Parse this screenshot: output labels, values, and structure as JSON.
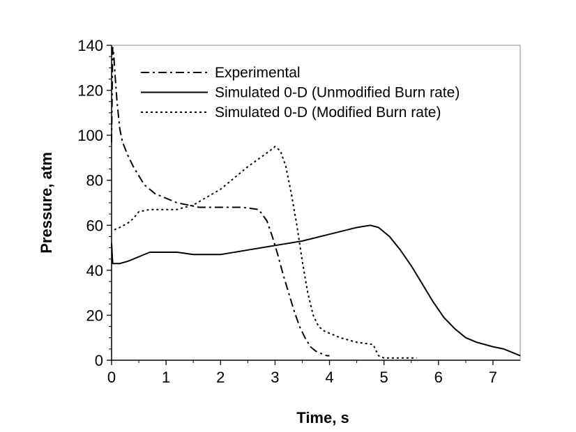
{
  "chart_data": {
    "type": "line",
    "title": "",
    "xlabel": "Time, s",
    "ylabel": "Pressure, atm",
    "xlim": [
      0,
      7.5
    ],
    "ylim": [
      0,
      140
    ],
    "xticks": [
      0,
      1,
      2,
      3,
      4,
      5,
      6,
      7
    ],
    "yticks": [
      0,
      20,
      40,
      60,
      80,
      100,
      120,
      140
    ],
    "grid": false,
    "legend_position": "top",
    "series": [
      {
        "name": "Experimental",
        "style": "dash-dot",
        "color": "#000000",
        "x": [
          0,
          0.02,
          0.04,
          0.06,
          0.1,
          0.15,
          0.2,
          0.3,
          0.4,
          0.5,
          0.6,
          0.8,
          1.0,
          1.2,
          1.4,
          1.6,
          2.0,
          2.4,
          2.7,
          2.85,
          2.95,
          3.05,
          3.15,
          3.25,
          3.35,
          3.45,
          3.55,
          3.65,
          3.75,
          3.85,
          3.95,
          4.0
        ],
        "y": [
          97,
          139,
          136,
          128,
          115,
          103,
          97,
          91,
          86,
          82,
          78,
          74,
          72,
          70,
          69,
          68,
          68,
          68,
          67,
          62,
          55,
          47,
          38,
          30,
          22,
          15,
          10,
          6,
          4,
          3,
          2,
          2
        ]
      },
      {
        "name": "Simulated 0-D (Unmodified Burn rate)",
        "style": "solid",
        "color": "#000000",
        "x": [
          0,
          0.02,
          0.05,
          0.15,
          0.3,
          0.5,
          0.7,
          1.0,
          1.2,
          1.5,
          2.0,
          2.5,
          3.0,
          3.5,
          4.0,
          4.5,
          4.75,
          4.9,
          5.1,
          5.3,
          5.5,
          5.7,
          5.9,
          6.1,
          6.3,
          6.5,
          6.7,
          7.0,
          7.2,
          7.4,
          7.5
        ],
        "y": [
          52,
          43,
          43,
          43,
          44,
          46,
          48,
          48,
          48,
          47,
          47,
          49,
          51,
          53,
          56,
          59,
          60,
          59,
          55,
          49,
          42,
          34,
          26,
          19,
          14,
          10,
          8,
          6,
          5,
          3,
          2
        ]
      },
      {
        "name": "Simulated 0-D (Modified Burn rate)",
        "style": "dotted",
        "color": "#000000",
        "x": [
          0.05,
          0.15,
          0.3,
          0.4,
          0.5,
          0.7,
          1.0,
          1.2,
          1.5,
          2.0,
          2.5,
          2.9,
          3.0,
          3.1,
          3.2,
          3.3,
          3.4,
          3.5,
          3.6,
          3.7,
          3.8,
          3.9,
          4.0,
          4.2,
          4.5,
          4.8,
          4.9,
          5.0,
          5.2,
          5.5,
          5.6
        ],
        "y": [
          58,
          59,
          61,
          63,
          66,
          67,
          67,
          67,
          69,
          76,
          86,
          93,
          95,
          93,
          86,
          74,
          60,
          44,
          30,
          20,
          15,
          13,
          12,
          10,
          8,
          7,
          2,
          1,
          1,
          1,
          1
        ]
      }
    ]
  },
  "legend": {
    "items": [
      {
        "label": "Experimental",
        "style": "dash-dot"
      },
      {
        "label": "Simulated 0-D (Unmodified Burn rate)",
        "style": "solid"
      },
      {
        "label": "Simulated 0-D (Modified Burn rate)",
        "style": "dotted"
      }
    ]
  }
}
